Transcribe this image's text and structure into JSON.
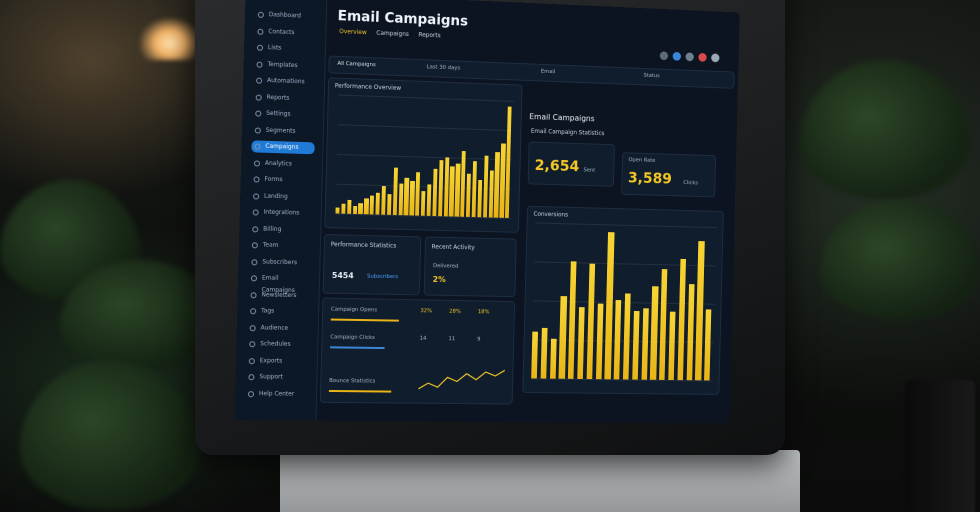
{
  "header": {
    "title": "Email Campaigns",
    "tabs": [
      "Overview",
      "Campaigns",
      "Reports"
    ]
  },
  "sidebar": {
    "items": [
      "Dashboard",
      "Contacts",
      "Lists",
      "Templates",
      "Automations",
      "Reports",
      "Settings",
      "Segments",
      "Campaigns",
      "Analytics",
      "Forms",
      "Landing",
      "Integrations",
      "Billing",
      "Team",
      "Subscribers",
      "Email Campaigns",
      "Newsletters",
      "Tags",
      "Audience",
      "Schedules",
      "Exports",
      "Support",
      "Help Center"
    ],
    "active_index": 8
  },
  "filters": [
    "All Campaigns",
    "Last 30 days",
    "Email",
    "Status"
  ],
  "main_chart": {
    "title": "Performance Overview"
  },
  "kpis": {
    "section_title": "Email Campaigns",
    "subtitle": "Email Campaign Statistics",
    "card1": {
      "value": "2,654",
      "label": "Sent"
    },
    "card2": {
      "label": "Open Rate",
      "value": "3,589",
      "unit": "Clicks"
    }
  },
  "side_chart": {
    "title": "Conversions"
  },
  "bottom_panels": {
    "left_title": "Performance Statistics",
    "left_value": "5454",
    "left_label": "Subscribers",
    "right_title": "Recent Activity",
    "right_label": "Delivered",
    "right_value": "2%"
  },
  "rows": [
    {
      "label": "Campaign Opens",
      "v1": "32%",
      "v2": "28%",
      "v3": "18%"
    },
    {
      "label": "Campaign Clicks",
      "v1": "14",
      "v2": "11",
      "v3": "9"
    },
    {
      "label": "Bounce Statistics",
      "v1": "",
      "v2": "",
      "v3": ""
    }
  ],
  "colors": {
    "accent": "#f3c728",
    "bg": "#0b1420",
    "active": "#1f7bd6"
  },
  "chart_data": [
    {
      "type": "bar",
      "values": [
        4,
        6,
        9,
        5,
        7,
        10,
        12,
        14,
        18,
        13,
        30,
        20,
        24,
        22,
        28,
        16,
        20,
        30,
        36,
        38,
        32,
        34,
        42,
        28,
        36,
        24,
        40,
        30,
        42,
        48,
        72
      ]
    },
    {
      "type": "bar",
      "values": [
        26,
        28,
        22,
        46,
        65,
        40,
        64,
        42,
        82,
        44,
        48,
        38,
        40,
        52,
        62,
        38,
        68,
        54,
        78,
        40
      ]
    }
  ]
}
